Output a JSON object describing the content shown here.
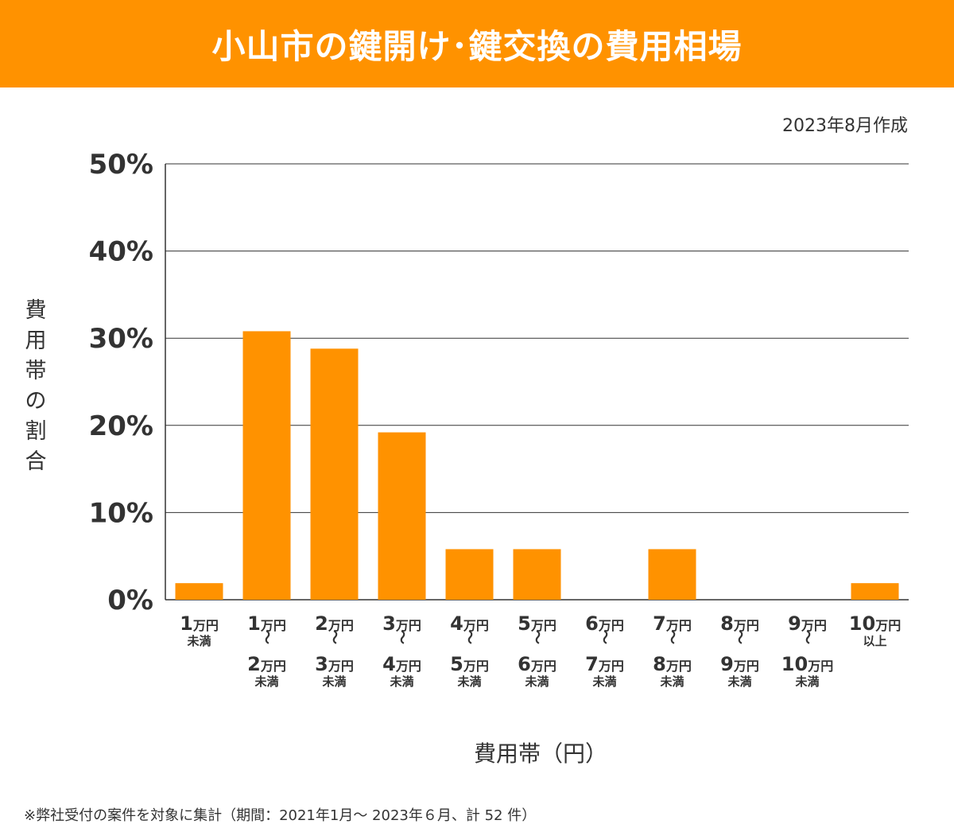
{
  "header": {
    "title": "小山市の鍵開け･鍵交換の費用相場"
  },
  "created": "2023年8月作成",
  "footnote": "※弊社受付の案件を対象に集計（期間：2021年1月～ 2023年６月、計 52 件）",
  "colors": {
    "bar": "#FF9200",
    "header": "#FF9200",
    "grid": "#333333"
  },
  "chart_data": {
    "type": "bar",
    "title": "小山市の鍵開け･鍵交換の費用相場",
    "xlabel": "費用帯（円）",
    "ylabel": "費用帯の割合",
    "ylim": [
      0,
      50
    ],
    "yticks": [
      "0%",
      "10%",
      "20%",
      "30%",
      "40%",
      "50%"
    ],
    "grid": true,
    "categories": [
      [
        "1万円",
        "未満"
      ],
      [
        "1万円",
        "～",
        "2万円",
        "未満"
      ],
      [
        "2万円",
        "～",
        "3万円",
        "未満"
      ],
      [
        "3万円",
        "～",
        "4万円",
        "未満"
      ],
      [
        "4万円",
        "～",
        "5万円",
        "未満"
      ],
      [
        "5万円",
        "～",
        "6万円",
        "未満"
      ],
      [
        "6万円",
        "～",
        "7万円",
        "未満"
      ],
      [
        "7万円",
        "～",
        "8万円",
        "未満"
      ],
      [
        "8万円",
        "～",
        "9万円",
        "未満"
      ],
      [
        "9万円",
        "～",
        "10万円",
        "未満"
      ],
      [
        "10万円",
        "以上"
      ]
    ],
    "values": [
      1.9,
      30.8,
      28.8,
      19.2,
      5.8,
      5.8,
      0,
      5.8,
      0,
      0,
      1.9
    ]
  }
}
